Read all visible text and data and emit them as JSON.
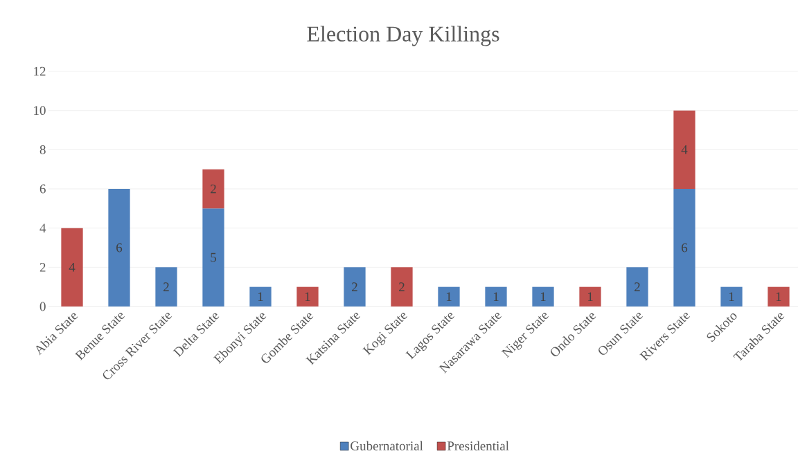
{
  "chart_data": {
    "type": "bar",
    "stacked": true,
    "title": "Election Day Killings",
    "categories": [
      "Abia State",
      "Benue State",
      "Cross River State",
      "Delta State",
      "Ebonyi State",
      "Gombe State",
      "Katsina State",
      "Kogi State",
      "Lagos State",
      "Nasarawa State",
      "Niger State",
      "Ondo State",
      "Osun State",
      "Rivers State",
      "Sokoto",
      "Taraba State"
    ],
    "series": [
      {
        "name": "Gubernatorial",
        "color": "#4f81bd",
        "values": [
          null,
          6,
          2,
          5,
          1,
          null,
          2,
          null,
          1,
          1,
          1,
          null,
          2,
          6,
          1,
          null
        ]
      },
      {
        "name": "Presidential",
        "color": "#c0504d",
        "values": [
          4,
          null,
          null,
          2,
          null,
          1,
          null,
          2,
          null,
          null,
          null,
          1,
          null,
          4,
          null,
          1
        ]
      }
    ],
    "ylim": [
      0,
      12
    ],
    "yticks": [
      0,
      2,
      4,
      6,
      8,
      10,
      12
    ],
    "grid": "y",
    "legend": "bottom",
    "data_labels": true
  }
}
